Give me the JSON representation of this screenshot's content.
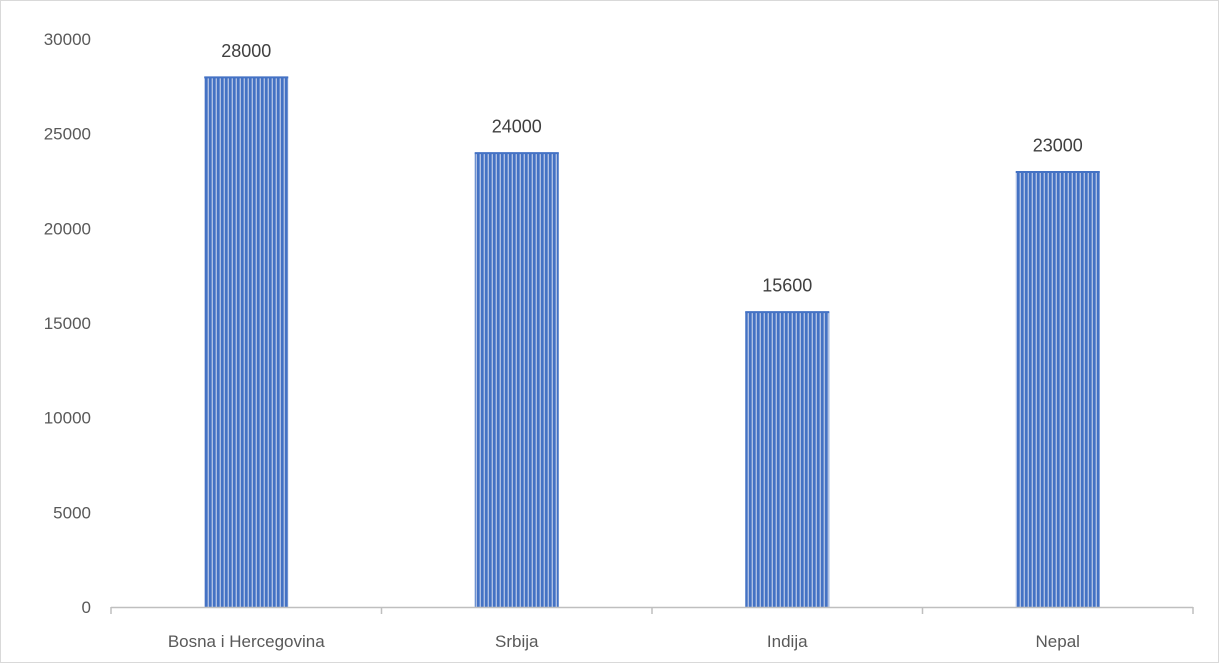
{
  "chart_data": {
    "type": "bar",
    "title": "",
    "xlabel": "",
    "ylabel": "",
    "categories": [
      "Bosna i Hercegovina",
      "Srbija",
      "Indija",
      "Nepal"
    ],
    "values": [
      28000,
      24000,
      15600,
      23000
    ],
    "data_labels": [
      "28000",
      "24000",
      "15600",
      "23000"
    ],
    "ylim": [
      0,
      30000
    ],
    "yticks": [
      0,
      5000,
      10000,
      15000,
      20000,
      25000,
      30000
    ],
    "ytick_labels": [
      "0",
      "5000",
      "10000",
      "15000",
      "20000",
      "25000",
      "30000"
    ],
    "grid": false,
    "legend": "none",
    "bar_color": "#4472c4",
    "bar_stripe_color": "#aebfe3",
    "bar_pattern": "vertical-stripes"
  }
}
